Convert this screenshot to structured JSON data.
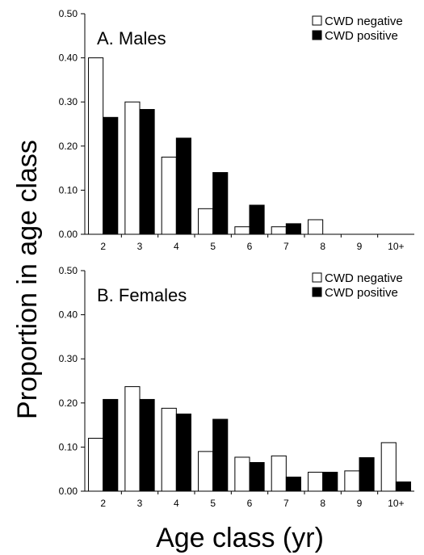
{
  "figure": {
    "ylabel": "Proportion in age class",
    "xlabel": "Age class (yr)"
  },
  "legend": {
    "negative": "CWD negative",
    "positive": "CWD positive",
    "negative_color": "#ffffff",
    "positive_color": "#000000"
  },
  "chart_data": [
    {
      "type": "bar",
      "title": "A. Males",
      "categories": [
        "2",
        "3",
        "4",
        "5",
        "6",
        "7",
        "8",
        "9",
        "10+"
      ],
      "series": [
        {
          "name": "CWD negative",
          "values": [
            0.4,
            0.3,
            0.175,
            0.058,
            0.017,
            0.017,
            0.033,
            0,
            0
          ]
        },
        {
          "name": "CWD positive",
          "values": [
            0.265,
            0.283,
            0.218,
            0.14,
            0.066,
            0.024,
            0,
            0,
            0
          ]
        }
      ],
      "ylim": [
        0,
        0.5
      ],
      "yticks": [
        "0.00",
        "0.10",
        "0.20",
        "0.30",
        "0.40",
        "0.50"
      ],
      "legend_position": "top-right"
    },
    {
      "type": "bar",
      "title": "B. Females",
      "categories": [
        "2",
        "3",
        "4",
        "5",
        "6",
        "7",
        "8",
        "9",
        "10+"
      ],
      "series": [
        {
          "name": "CWD negative",
          "values": [
            0.12,
            0.237,
            0.188,
            0.09,
            0.077,
            0.08,
            0.043,
            0.046,
            0.11
          ]
        },
        {
          "name": "CWD positive",
          "values": [
            0.208,
            0.208,
            0.175,
            0.163,
            0.065,
            0.032,
            0.043,
            0.076,
            0.021
          ]
        }
      ],
      "ylim": [
        0,
        0.5
      ],
      "yticks": [
        "0.00",
        "0.10",
        "0.20",
        "0.30",
        "0.40",
        "0.50"
      ],
      "legend_position": "top-right"
    }
  ]
}
